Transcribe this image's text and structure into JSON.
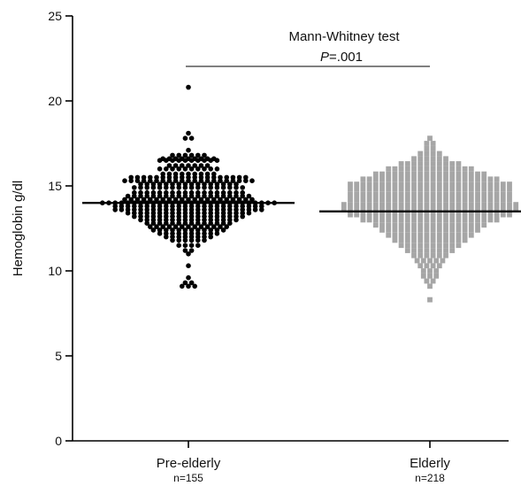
{
  "chart_data": {
    "type": "scatter",
    "ylabel": "Hemoglobin g/dl",
    "ylim": [
      0,
      25
    ],
    "yticks": [
      "0",
      "5",
      "10",
      "15",
      "20",
      "25"
    ],
    "categories": [
      {
        "name": "Pre-elderly",
        "n_label": "n=155",
        "median": 14.0,
        "marker": "circle",
        "color": "#000000"
      },
      {
        "name": "Elderly",
        "n_label": "n=218",
        "median": 13.5,
        "marker": "square",
        "color": "#a6a6a6"
      }
    ],
    "annotation": {
      "test_label": "Mann-Whitney test",
      "p_symbol": "P",
      "p_value": "=.001"
    },
    "series": [
      {
        "name": "Pre-elderly",
        "bins": [
          [
            20.8,
            1
          ],
          [
            18.1,
            1
          ],
          [
            17.8,
            2
          ],
          [
            17.1,
            1
          ],
          [
            16.8,
            6
          ],
          [
            16.6,
            9
          ],
          [
            16.5,
            10
          ],
          [
            16.2,
            7
          ],
          [
            16.0,
            10
          ],
          [
            15.7,
            9
          ],
          [
            15.5,
            19
          ],
          [
            15.3,
            21
          ],
          [
            15.1,
            16
          ],
          [
            14.9,
            18
          ],
          [
            14.6,
            18
          ],
          [
            14.4,
            20
          ],
          [
            14.2,
            21
          ],
          [
            14.0,
            28
          ],
          [
            13.8,
            24
          ],
          [
            13.6,
            24
          ],
          [
            13.4,
            20
          ],
          [
            13.2,
            18
          ],
          [
            13.0,
            16
          ],
          [
            12.8,
            14
          ],
          [
            12.6,
            13
          ],
          [
            12.4,
            12
          ],
          [
            12.2,
            10
          ],
          [
            12.0,
            8
          ],
          [
            11.8,
            6
          ],
          [
            11.5,
            4
          ],
          [
            11.2,
            2
          ],
          [
            11.0,
            1
          ],
          [
            10.3,
            1
          ],
          [
            9.6,
            1
          ],
          [
            9.3,
            2
          ],
          [
            9.1,
            3
          ]
        ]
      },
      {
        "name": "Elderly",
        "bins": [
          [
            17.8,
            1
          ],
          [
            17.5,
            2
          ],
          [
            17.2,
            2
          ],
          [
            16.9,
            4
          ],
          [
            16.6,
            6
          ],
          [
            16.3,
            10
          ],
          [
            16.0,
            14
          ],
          [
            15.7,
            18
          ],
          [
            15.4,
            22
          ],
          [
            15.1,
            26
          ],
          [
            14.8,
            26
          ],
          [
            14.5,
            26
          ],
          [
            14.2,
            26
          ],
          [
            13.9,
            28
          ],
          [
            13.6,
            28
          ],
          [
            13.3,
            26
          ],
          [
            13.0,
            22
          ],
          [
            12.7,
            18
          ],
          [
            12.4,
            16
          ],
          [
            12.1,
            14
          ],
          [
            11.8,
            12
          ],
          [
            11.5,
            10
          ],
          [
            11.2,
            8
          ],
          [
            10.9,
            6
          ],
          [
            10.6,
            5
          ],
          [
            10.3,
            4
          ],
          [
            10.0,
            3
          ],
          [
            9.7,
            3
          ],
          [
            9.4,
            2
          ],
          [
            9.1,
            1
          ],
          [
            8.3,
            1
          ]
        ]
      }
    ]
  }
}
